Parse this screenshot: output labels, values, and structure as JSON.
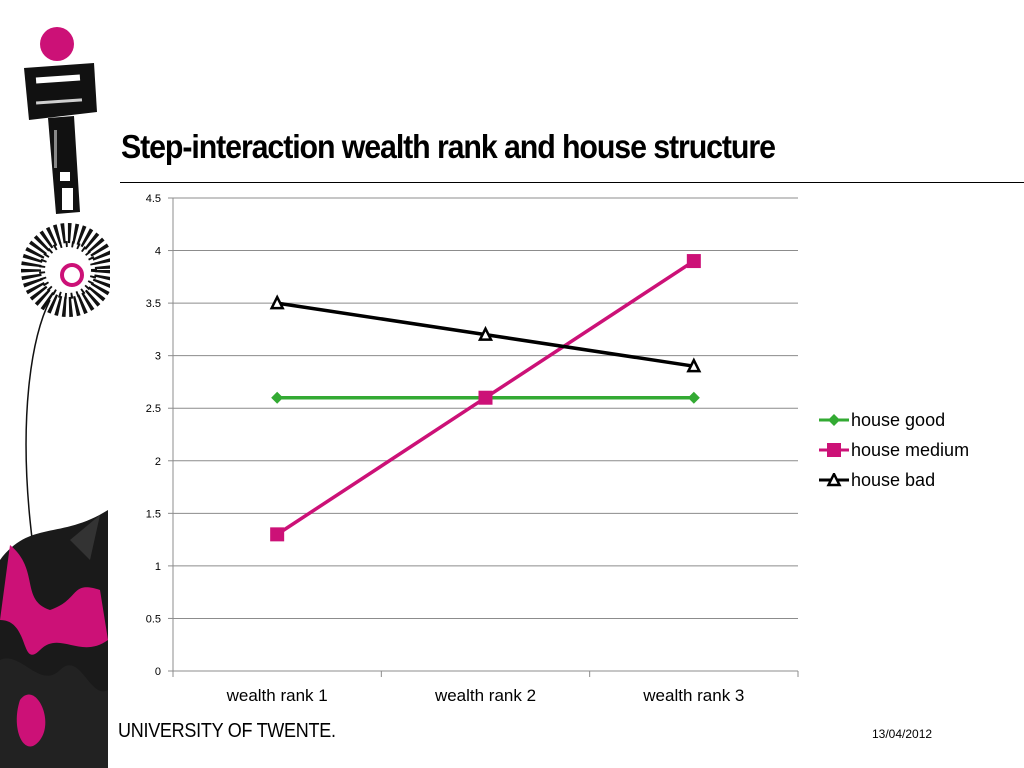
{
  "slide": {
    "title": "Step-interaction wealth rank and house structure",
    "footer_logo": "UNIVERSITY OF TWENTE.",
    "date": "13/04/2012"
  },
  "colors": {
    "pink": "#cc1177",
    "black": "#000000",
    "green": "#33aa33"
  },
  "chart_data": {
    "type": "line",
    "categories": [
      "wealth rank 1",
      "wealth rank 2",
      "wealth rank 3"
    ],
    "ylim": [
      0,
      4.5
    ],
    "yticks": [
      "0",
      "0.5",
      "1",
      "1.5",
      "2",
      "2.5",
      "3",
      "3.5",
      "4",
      "4.5"
    ],
    "grid": true,
    "legend_position": "right",
    "series": [
      {
        "name": "house good",
        "values": [
          2.6,
          2.6,
          2.6
        ],
        "color": "#33aa33",
        "marker": "diamond"
      },
      {
        "name": "house medium",
        "values": [
          1.3,
          2.6,
          3.9
        ],
        "color": "#cc1177",
        "marker": "square"
      },
      {
        "name": "house bad",
        "values": [
          3.5,
          3.2,
          2.9
        ],
        "color": "#000000",
        "marker": "triangle"
      }
    ]
  }
}
